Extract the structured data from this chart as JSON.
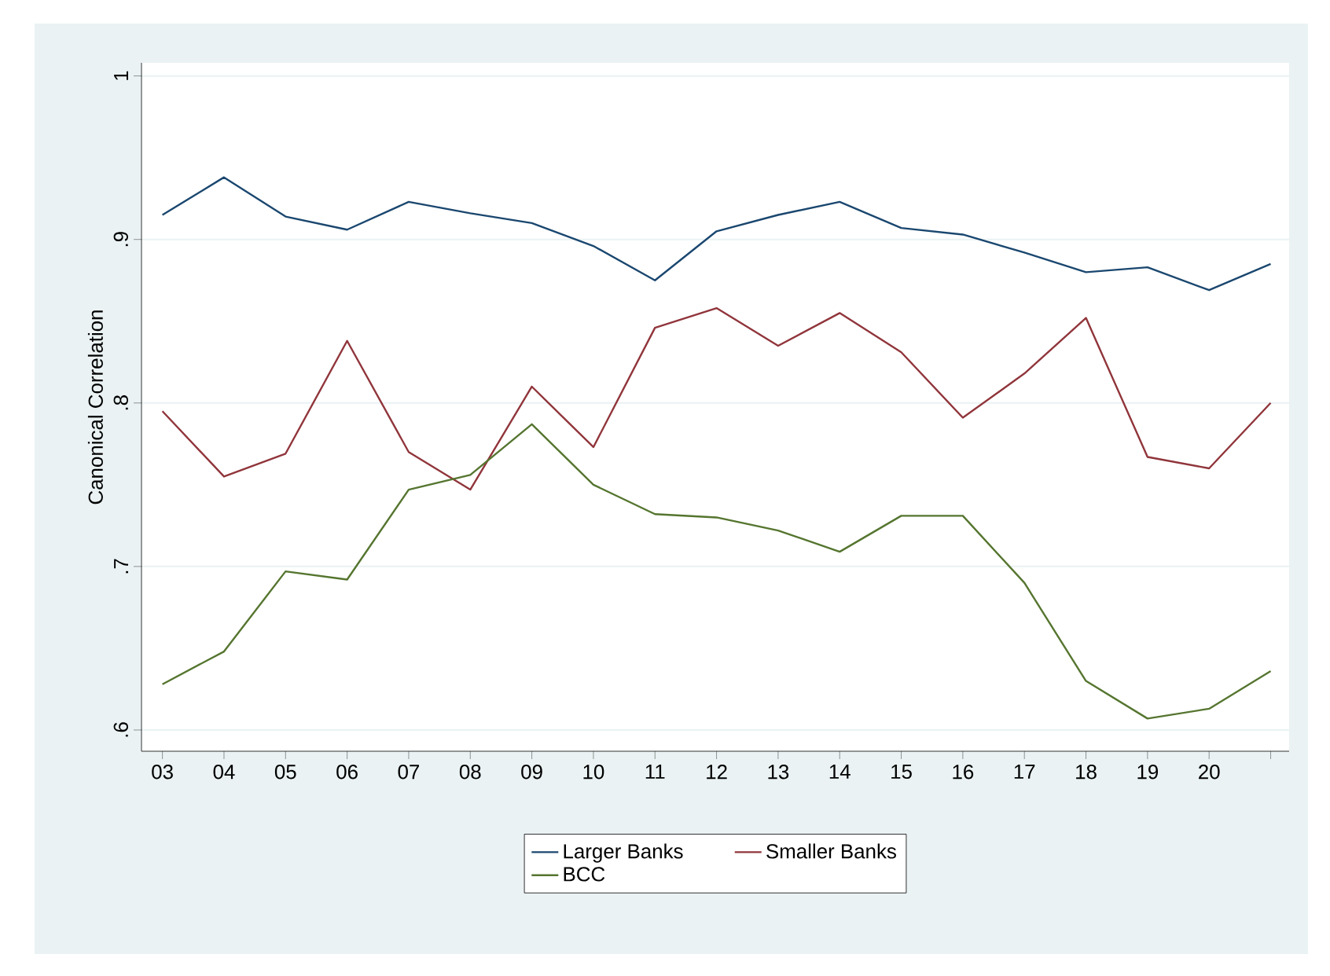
{
  "chart_data": {
    "type": "line",
    "ylabel": "Canonical Correlation",
    "categories": [
      "03",
      "04",
      "05",
      "06",
      "07",
      "08",
      "09",
      "10",
      "11",
      "12",
      "13",
      "14",
      "15",
      "16",
      "17",
      "18",
      "19",
      "20",
      null
    ],
    "series": [
      {
        "name": "Larger Banks",
        "color": "#1a476f",
        "values": [
          0.915,
          0.938,
          0.914,
          0.906,
          0.923,
          0.916,
          0.91,
          0.896,
          0.875,
          0.905,
          0.915,
          0.923,
          0.907,
          0.903,
          0.892,
          0.88,
          0.883,
          0.869,
          0.885
        ]
      },
      {
        "name": "Smaller Banks",
        "color": "#90353b",
        "values": [
          0.795,
          0.755,
          0.769,
          0.838,
          0.77,
          0.747,
          0.81,
          0.773,
          0.846,
          0.858,
          0.835,
          0.855,
          0.831,
          0.791,
          0.818,
          0.852,
          0.767,
          0.76,
          0.8
        ]
      },
      {
        "name": "BCC",
        "color": "#55752f",
        "values": [
          0.628,
          0.648,
          0.697,
          0.692,
          0.747,
          0.756,
          0.787,
          0.75,
          0.732,
          0.73,
          0.722,
          0.709,
          0.731,
          0.731,
          0.69,
          0.63,
          0.607,
          0.613,
          0.636
        ]
      }
    ],
    "ylim": [
      0.587,
      1.008
    ],
    "yticks": [
      {
        "value": 0.6,
        "label": ".6"
      },
      {
        "value": 0.7,
        "label": ".7"
      },
      {
        "value": 0.8,
        "label": ".8"
      },
      {
        "value": 0.9,
        "label": ".9"
      },
      {
        "value": 1,
        "label": "1"
      }
    ],
    "grid": "y",
    "legend": "bottom",
    "marker": "none",
    "line_style": "solid"
  }
}
